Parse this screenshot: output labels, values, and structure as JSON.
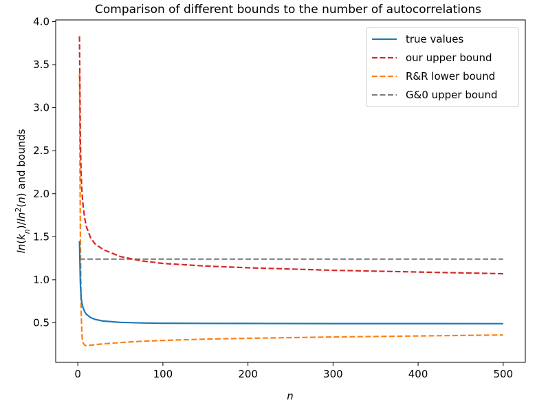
{
  "chart_data": {
    "type": "line",
    "title": "Comparison of different bounds to the number of autocorrelations",
    "xlabel": "n",
    "ylabel": "ln(k_n)/ln^2(n) and bounds",
    "xlim": [
      -26,
      526
    ],
    "ylim": [
      0.04,
      4.02
    ],
    "xticks": [
      0,
      100,
      200,
      300,
      400,
      500
    ],
    "xtick_labels": [
      "0",
      "100",
      "200",
      "300",
      "400",
      "500"
    ],
    "yticks": [
      0.5,
      1.0,
      1.5,
      2.0,
      2.5,
      3.0,
      3.5,
      4.0
    ],
    "ytick_labels": [
      "0.5",
      "1.0",
      "1.5",
      "2.0",
      "2.5",
      "3.0",
      "3.5",
      "4.0"
    ],
    "grid": false,
    "legend_position": "top-right",
    "series": [
      {
        "name": "true values",
        "color": "#1f77b4",
        "style": "solid",
        "x": [
          2,
          3,
          4,
          5,
          6,
          8,
          10,
          15,
          20,
          30,
          50,
          75,
          100,
          150,
          200,
          300,
          400,
          500
        ],
        "y": [
          1.45,
          0.95,
          0.78,
          0.72,
          0.68,
          0.63,
          0.6,
          0.56,
          0.54,
          0.52,
          0.505,
          0.498,
          0.495,
          0.493,
          0.492,
          0.491,
          0.491,
          0.49
        ]
      },
      {
        "name": "our upper bound",
        "color": "#d62728",
        "style": "dashed",
        "x": [
          2,
          3,
          4,
          5,
          6,
          8,
          10,
          15,
          20,
          30,
          50,
          75,
          100,
          150,
          200,
          300,
          400,
          500
        ],
        "y": [
          3.83,
          2.6,
          2.2,
          2.0,
          1.88,
          1.72,
          1.62,
          1.49,
          1.42,
          1.35,
          1.27,
          1.22,
          1.19,
          1.16,
          1.14,
          1.11,
          1.09,
          1.07
        ]
      },
      {
        "name": "R&R lower bound",
        "color": "#ff7f0e",
        "style": "dashed",
        "x": [
          2,
          3,
          4,
          5,
          6,
          8,
          10,
          15,
          20,
          30,
          50,
          75,
          100,
          150,
          200,
          300,
          400,
          500
        ],
        "y": [
          3.4,
          1.5,
          0.6,
          0.33,
          0.27,
          0.24,
          0.235,
          0.24,
          0.245,
          0.255,
          0.27,
          0.285,
          0.295,
          0.31,
          0.32,
          0.335,
          0.347,
          0.358
        ]
      },
      {
        "name": "G&0 upper bound",
        "color": "#7f7f7f",
        "style": "dashed",
        "x": [
          2,
          500
        ],
        "y": [
          1.24,
          1.24
        ]
      }
    ]
  }
}
